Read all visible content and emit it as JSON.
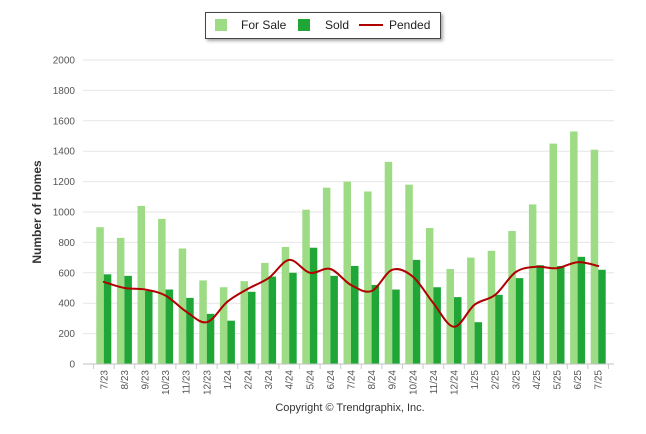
{
  "footer": "Copyright © Trendgraphix, Inc.",
  "chart_data": {
    "type": "bar",
    "categories": [
      "7/23",
      "8/23",
      "9/23",
      "10/23",
      "11/23",
      "12/23",
      "1/24",
      "2/24",
      "3/24",
      "4/24",
      "5/24",
      "6/24",
      "7/24",
      "8/24",
      "9/24",
      "10/24",
      "11/24",
      "12/24",
      "1/25",
      "2/25",
      "3/25",
      "4/25",
      "5/25",
      "6/25",
      "7/25"
    ],
    "series": [
      {
        "name": "For Sale",
        "type": "bar",
        "color": "#9ddc85",
        "values": [
          900,
          830,
          1040,
          955,
          760,
          550,
          505,
          545,
          665,
          770,
          1015,
          1160,
          1200,
          1135,
          1330,
          1180,
          895,
          625,
          700,
          745,
          875,
          1050,
          1450,
          1530,
          1410
        ]
      },
      {
        "name": "Sold",
        "type": "bar",
        "color": "#1fa637",
        "values": [
          590,
          580,
          480,
          490,
          435,
          330,
          285,
          475,
          575,
          600,
          765,
          580,
          645,
          520,
          490,
          685,
          505,
          440,
          275,
          455,
          565,
          650,
          645,
          705,
          620
        ]
      },
      {
        "name": "Pended",
        "type": "line",
        "color": "#b00000",
        "values": [
          540,
          500,
          490,
          450,
          345,
          275,
          410,
          495,
          565,
          685,
          600,
          625,
          520,
          480,
          620,
          575,
          400,
          245,
          390,
          455,
          605,
          640,
          630,
          670,
          645
        ]
      }
    ],
    "xlabel": "",
    "ylabel": "Number of Homes",
    "ylim": [
      0,
      2000
    ],
    "yticks": [
      0,
      200,
      400,
      600,
      800,
      1000,
      1200,
      1400,
      1600,
      1800,
      2000
    ],
    "grid": true,
    "legend": "top-center"
  }
}
